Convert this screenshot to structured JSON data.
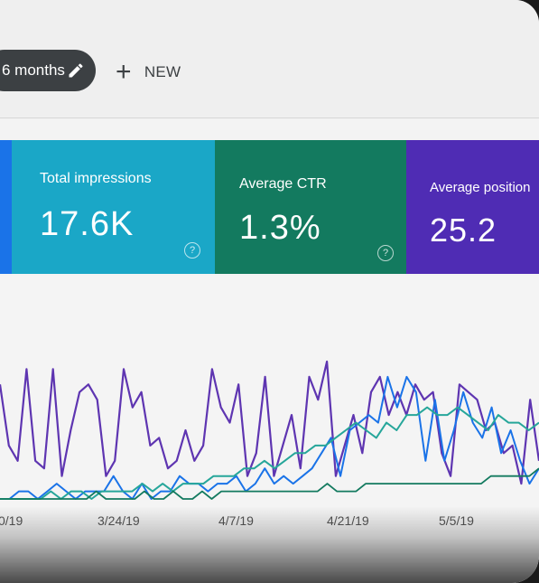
{
  "toolbar": {
    "date_range": "6 months",
    "new_label": "NEW"
  },
  "metrics": [
    {
      "label": "Total impressions",
      "value": "17.6K",
      "color": "#1aa7c7"
    },
    {
      "label": "Average CTR",
      "value": "1.3%",
      "color": "#137a5f"
    },
    {
      "label": "Average position",
      "value": "25.2",
      "color": "#4f2cb4"
    }
  ],
  "icons": {
    "edit": "pencil-icon",
    "add": "plus-icon",
    "help": "help-circle-icon"
  },
  "chart_data": {
    "type": "line",
    "x_tick_labels": [
      "0/19",
      "3/24/19",
      "4/7/19",
      "4/21/19",
      "5/5/19"
    ],
    "series": [
      {
        "color": "#5e35b1",
        "values": [
          15,
          7,
          5,
          17,
          5,
          4,
          17,
          3,
          9,
          14,
          15,
          13,
          3,
          5,
          17,
          12,
          14,
          7,
          8,
          4,
          5,
          9,
          5,
          7,
          17,
          12,
          10,
          15,
          3,
          6,
          16,
          3,
          7,
          11,
          4,
          16,
          13,
          18,
          3,
          7,
          11,
          6,
          14,
          16,
          11,
          14,
          11,
          15,
          13,
          14,
          6,
          3,
          15,
          14,
          13,
          9,
          10,
          6,
          7,
          2,
          13,
          5
        ]
      },
      {
        "color": "#1a73e8",
        "values": [
          0,
          0,
          1,
          1,
          0,
          1,
          2,
          1,
          0,
          1,
          1,
          1,
          3,
          1,
          0,
          2,
          0,
          1,
          1,
          3,
          2,
          2,
          1,
          2,
          2,
          3,
          1,
          2,
          4,
          2,
          3,
          2,
          3,
          4,
          6,
          8,
          3,
          9,
          10,
          11,
          10,
          16,
          12,
          16,
          14,
          5,
          13,
          5,
          9,
          14,
          10,
          8,
          12,
          6,
          9,
          5,
          2,
          4
        ]
      },
      {
        "color": "#26a69a",
        "values": [
          0,
          0,
          0,
          0,
          0,
          1,
          0,
          1,
          1,
          0,
          1,
          1,
          1,
          1,
          2,
          1,
          2,
          1,
          2,
          2,
          2,
          3,
          3,
          3,
          4,
          4,
          5,
          4,
          5,
          6,
          6,
          7,
          7,
          8,
          9,
          10,
          9,
          8,
          10,
          9,
          11,
          11,
          12,
          11,
          11,
          12,
          11,
          10,
          9,
          11,
          10,
          10,
          9,
          10
        ]
      },
      {
        "color": "#137a5f",
        "values": [
          0,
          0,
          0,
          0,
          0,
          0,
          0,
          0,
          0,
          0,
          1,
          0,
          0,
          0,
          0,
          1,
          0,
          0,
          1,
          0,
          0,
          1,
          0,
          1,
          1,
          1,
          1,
          1,
          1,
          1,
          1,
          1,
          1,
          1,
          2,
          1,
          1,
          1,
          2,
          2,
          2,
          2,
          2,
          2,
          2,
          2,
          2,
          2,
          2,
          2,
          2,
          3,
          3,
          3,
          3,
          3,
          4
        ]
      }
    ]
  }
}
